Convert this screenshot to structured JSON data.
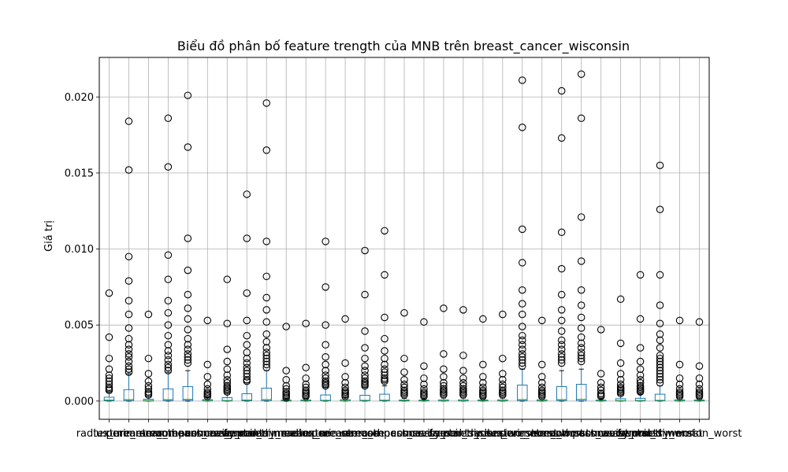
{
  "chart_data": {
    "type": "box",
    "title": "Biểu đồ phân bố feature trength của MNB trên breast_cancer_wisconsin",
    "xlabel": "",
    "ylabel": "Giá trị",
    "ylim": [
      -0.0012,
      0.0226
    ],
    "yticks": [
      "0.000",
      "0.005",
      "0.010",
      "0.015",
      "0.020"
    ],
    "ytick_values": [
      0,
      0.005,
      0.01,
      0.015,
      0.02
    ],
    "grid": true,
    "colors": {
      "box": "#1f77b4",
      "median": "#2ca02c",
      "grid": "#b0b0b0",
      "outlier": "#000000"
    },
    "categories": [
      "radius_mean",
      "texture_mean",
      "perimeter_mean",
      "area_mean",
      "smoothness_mean",
      "compactness_mean",
      "concavity_mean",
      "concave points_mean",
      "symmetry_mean",
      "fractal_dimension_mean",
      "radius_se",
      "texture_se",
      "perimeter_se",
      "area_se",
      "smoothness_se",
      "compactness_se",
      "concavity_se",
      "concave points_se",
      "symmetry_se",
      "fractal_dimension_se",
      "radius_worst",
      "texture_worst",
      "perimeter_worst",
      "area_worst",
      "smoothness_worst",
      "compactness_worst",
      "concavity_worst",
      "concave points_worst",
      "symmetry_worst",
      "fractal_dimension_worst"
    ],
    "series": [
      {
        "q1": 2e-05,
        "median": 7e-05,
        "q3": 0.00025,
        "whisker_low": 0.0,
        "whisker_high": 0.0006,
        "outliers": [
          0.0071,
          0.0042,
          0.0028,
          0.0021,
          0.0017,
          0.0015,
          0.0013,
          0.0011,
          0.0009,
          0.0008,
          0.0007
        ]
      },
      {
        "q1": 3e-05,
        "median": 0.0001,
        "q3": 0.00075,
        "whisker_low": 0.0,
        "whisker_high": 0.0018,
        "outliers": [
          0.0184,
          0.0152,
          0.0095,
          0.0079,
          0.0066,
          0.0057,
          0.0048,
          0.0041,
          0.0037,
          0.0034,
          0.0031,
          0.0029,
          0.0026,
          0.0023,
          0.0021,
          0.0019
        ]
      },
      {
        "q1": 1e-05,
        "median": 3e-05,
        "q3": 0.00012,
        "whisker_low": 0.0,
        "whisker_high": 0.0003,
        "outliers": [
          0.0057,
          0.0028,
          0.0018,
          0.0013,
          0.001,
          0.0008,
          0.0006,
          0.0005,
          0.0004
        ]
      },
      {
        "q1": 3e-05,
        "median": 0.0001,
        "q3": 0.0008,
        "whisker_low": 0.0,
        "whisker_high": 0.0019,
        "outliers": [
          0.0186,
          0.0154,
          0.0096,
          0.008,
          0.0066,
          0.0058,
          0.005,
          0.0043,
          0.0037,
          0.0033,
          0.003,
          0.0027,
          0.0024,
          0.0022,
          0.002
        ]
      },
      {
        "q1": 4e-05,
        "median": 0.00012,
        "q3": 0.00095,
        "whisker_low": 0.0,
        "whisker_high": 0.002,
        "outliers": [
          0.0201,
          0.0167,
          0.0107,
          0.0086,
          0.007,
          0.0061,
          0.0054,
          0.0047,
          0.0041,
          0.0037,
          0.0034,
          0.0031,
          0.0029,
          0.0027,
          0.0025
        ]
      },
      {
        "q1": 1e-05,
        "median": 3e-05,
        "q3": 0.0001,
        "whisker_low": 0.0,
        "whisker_high": 0.00025,
        "outliers": [
          0.0053,
          0.0024,
          0.0016,
          0.0011,
          0.0008,
          0.0006,
          0.0005,
          0.0004,
          0.0003
        ]
      },
      {
        "q1": 1e-05,
        "median": 4e-05,
        "q3": 0.00022,
        "whisker_low": 0.0,
        "whisker_high": 0.0005,
        "outliers": [
          0.008,
          0.0051,
          0.0034,
          0.0026,
          0.0021,
          0.0017,
          0.0014,
          0.0012,
          0.001,
          0.0009,
          0.0008,
          0.0007,
          0.0006
        ]
      },
      {
        "q1": 2e-05,
        "median": 7e-05,
        "q3": 0.00048,
        "whisker_low": 0.0,
        "whisker_high": 0.0012,
        "outliers": [
          0.0136,
          0.0107,
          0.0071,
          0.0053,
          0.0043,
          0.0037,
          0.0032,
          0.0028,
          0.0025,
          0.0022,
          0.002,
          0.0018,
          0.0016,
          0.0014,
          0.0013
        ]
      },
      {
        "q1": 3e-05,
        "median": 0.0001,
        "q3": 0.00085,
        "whisker_low": 0.0,
        "whisker_high": 0.002,
        "outliers": [
          0.0196,
          0.0165,
          0.0105,
          0.0082,
          0.0068,
          0.006,
          0.0052,
          0.0044,
          0.0039,
          0.0035,
          0.0032,
          0.003,
          0.0028,
          0.0026,
          0.0024,
          0.0022
        ]
      },
      {
        "q1": 1e-05,
        "median": 2e-05,
        "q3": 6e-05,
        "whisker_low": 0.0,
        "whisker_high": 0.00015,
        "outliers": [
          0.0049,
          0.002,
          0.0014,
          0.001,
          0.0008,
          0.0006,
          0.0005,
          0.0004,
          0.0003,
          0.0002
        ]
      },
      {
        "q1": 1e-05,
        "median": 2e-05,
        "q3": 7e-05,
        "whisker_low": 0.0,
        "whisker_high": 0.00017,
        "outliers": [
          0.0051,
          0.0022,
          0.0015,
          0.0011,
          0.0009,
          0.0007,
          0.0006,
          0.0005,
          0.0004,
          0.0003
        ]
      },
      {
        "q1": 2e-05,
        "median": 5e-05,
        "q3": 0.0004,
        "whisker_low": 0.0,
        "whisker_high": 0.0009,
        "outliers": [
          0.0105,
          0.0075,
          0.005,
          0.0037,
          0.0029,
          0.0024,
          0.002,
          0.0017,
          0.0015,
          0.0013,
          0.0012,
          0.0011,
          0.001
        ]
      },
      {
        "q1": 1e-05,
        "median": 2e-05,
        "q3": 9e-05,
        "whisker_low": 0.0,
        "whisker_high": 0.00022,
        "outliers": [
          0.0054,
          0.0025,
          0.0016,
          0.0012,
          0.0009,
          0.0007,
          0.0006,
          0.0005,
          0.0004,
          0.0003
        ]
      },
      {
        "q1": 2e-05,
        "median": 5e-05,
        "q3": 0.00038,
        "whisker_low": 0.0,
        "whisker_high": 0.0009,
        "outliers": [
          0.0099,
          0.007,
          0.0046,
          0.0035,
          0.0028,
          0.0023,
          0.002,
          0.0017,
          0.0015,
          0.0013,
          0.0012,
          0.0011,
          0.001
        ]
      },
      {
        "q1": 2e-05,
        "median": 6e-05,
        "q3": 0.00045,
        "whisker_low": 0.0,
        "whisker_high": 0.001,
        "outliers": [
          0.0112,
          0.0083,
          0.0055,
          0.0041,
          0.0033,
          0.0028,
          0.0024,
          0.0021,
          0.0019,
          0.0017,
          0.0015,
          0.0014,
          0.0013
        ]
      },
      {
        "q1": 1e-05,
        "median": 2e-05,
        "q3": 7e-05,
        "whisker_low": 0.0,
        "whisker_high": 0.00018,
        "outliers": [
          0.0058,
          0.0028,
          0.0019,
          0.0014,
          0.0011,
          0.0009,
          0.0007,
          0.0006,
          0.0005,
          0.0004
        ]
      },
      {
        "q1": 1e-05,
        "median": 2e-05,
        "q3": 6e-05,
        "whisker_low": 0.0,
        "whisker_high": 0.00015,
        "outliers": [
          0.0052,
          0.0023,
          0.0015,
          0.0011,
          0.0008,
          0.0006,
          0.0005,
          0.0004,
          0.0003
        ]
      },
      {
        "q1": 1e-05,
        "median": 2e-05,
        "q3": 8e-05,
        "whisker_low": 0.0,
        "whisker_high": 0.0002,
        "outliers": [
          0.0061,
          0.0031,
          0.0021,
          0.0016,
          0.0012,
          0.001,
          0.0008,
          0.0007,
          0.0006,
          0.0005,
          0.0004
        ]
      },
      {
        "q1": 1e-05,
        "median": 2e-05,
        "q3": 8e-05,
        "whisker_low": 0.0,
        "whisker_high": 0.0002,
        "outliers": [
          0.006,
          0.003,
          0.002,
          0.0015,
          0.0012,
          0.001,
          0.0008,
          0.0007,
          0.0006,
          0.0005,
          0.0004
        ]
      },
      {
        "q1": 1e-05,
        "median": 2e-05,
        "q3": 7e-05,
        "whisker_low": 0.0,
        "whisker_high": 0.00018,
        "outliers": [
          0.0054,
          0.0024,
          0.0016,
          0.0012,
          0.0009,
          0.0007,
          0.0006,
          0.0005,
          0.0004,
          0.0003
        ]
      },
      {
        "q1": 1e-05,
        "median": 2e-05,
        "q3": 8e-05,
        "whisker_low": 0.0,
        "whisker_high": 0.0002,
        "outliers": [
          0.0057,
          0.0028,
          0.0018,
          0.0014,
          0.0011,
          0.0009,
          0.0007,
          0.0006,
          0.0005,
          0.0004
        ]
      },
      {
        "q1": 3e-05,
        "median": 0.0001,
        "q3": 0.00105,
        "whisker_low": 0.0,
        "whisker_high": 0.0021,
        "outliers": [
          0.0211,
          0.018,
          0.0113,
          0.0091,
          0.0073,
          0.0064,
          0.0057,
          0.0049,
          0.0043,
          0.004,
          0.0037,
          0.0034,
          0.0031,
          0.0029,
          0.0027,
          0.0025,
          0.0023
        ]
      },
      {
        "q1": 1e-05,
        "median": 2e-05,
        "q3": 8e-05,
        "whisker_low": 0.0,
        "whisker_high": 0.0002,
        "outliers": [
          0.0053,
          0.0024,
          0.0016,
          0.0012,
          0.0009,
          0.0007,
          0.0006,
          0.0005,
          0.0004,
          0.0003
        ]
      },
      {
        "q1": 3e-05,
        "median": 0.0001,
        "q3": 0.00095,
        "whisker_low": 0.0,
        "whisker_high": 0.002,
        "outliers": [
          0.0204,
          0.0173,
          0.0111,
          0.0087,
          0.007,
          0.006,
          0.0053,
          0.0046,
          0.004,
          0.0037,
          0.0034,
          0.0031,
          0.0029,
          0.0027,
          0.0025
        ]
      },
      {
        "q1": 3e-05,
        "median": 0.00012,
        "q3": 0.0011,
        "whisker_low": 0.0,
        "whisker_high": 0.0021,
        "outliers": [
          0.0215,
          0.0186,
          0.0121,
          0.0092,
          0.0073,
          0.0063,
          0.0055,
          0.0048,
          0.0042,
          0.0038,
          0.0035,
          0.0032,
          0.003,
          0.0028,
          0.0026
        ]
      },
      {
        "q1": 1e-05,
        "median": 2e-05,
        "q3": 6e-05,
        "whisker_low": 0.0,
        "whisker_high": 0.00015,
        "outliers": [
          0.0047,
          0.0018,
          0.0012,
          0.0009,
          0.0007,
          0.0005,
          0.0004,
          0.0003
        ]
      },
      {
        "q1": 1e-05,
        "median": 3e-05,
        "q3": 0.00015,
        "whisker_low": 0.0,
        "whisker_high": 0.0004,
        "outliers": [
          0.0067,
          0.0038,
          0.0025,
          0.0018,
          0.0014,
          0.0011,
          0.0009,
          0.0008,
          0.0007,
          0.0006,
          0.0005
        ]
      },
      {
        "q1": 1e-05,
        "median": 4e-05,
        "q3": 0.00018,
        "whisker_low": 0.0,
        "whisker_high": 0.00045,
        "outliers": [
          0.0083,
          0.0054,
          0.0035,
          0.0026,
          0.0021,
          0.0017,
          0.0014,
          0.0012,
          0.001,
          0.0009,
          0.0008,
          0.0007,
          0.0006
        ]
      },
      {
        "q1": 2e-05,
        "median": 5e-05,
        "q3": 0.00045,
        "whisker_low": 0.0,
        "whisker_high": 0.001,
        "outliers": [
          0.0155,
          0.0126,
          0.0083,
          0.0063,
          0.0051,
          0.0044,
          0.004,
          0.0035,
          0.003,
          0.0028,
          0.0026,
          0.0024,
          0.0022,
          0.002,
          0.0018,
          0.0016,
          0.0014,
          0.0012
        ]
      },
      {
        "q1": 1e-05,
        "median": 2e-05,
        "q3": 8e-05,
        "whisker_low": 0.0,
        "whisker_high": 0.0002,
        "outliers": [
          0.0053,
          0.0024,
          0.0015,
          0.0011,
          0.0008,
          0.0006,
          0.0005,
          0.0004,
          0.0003
        ]
      }
    ],
    "extra_series": [
      {
        "q1": 1e-05,
        "median": 2e-05,
        "q3": 7e-05,
        "whisker_low": 0.0,
        "whisker_high": 0.00018,
        "outliers": [
          0.0052,
          0.0023,
          0.0015,
          0.0011,
          0.0008,
          0.0006,
          0.0005,
          0.0004,
          0.0003
        ]
      }
    ]
  }
}
